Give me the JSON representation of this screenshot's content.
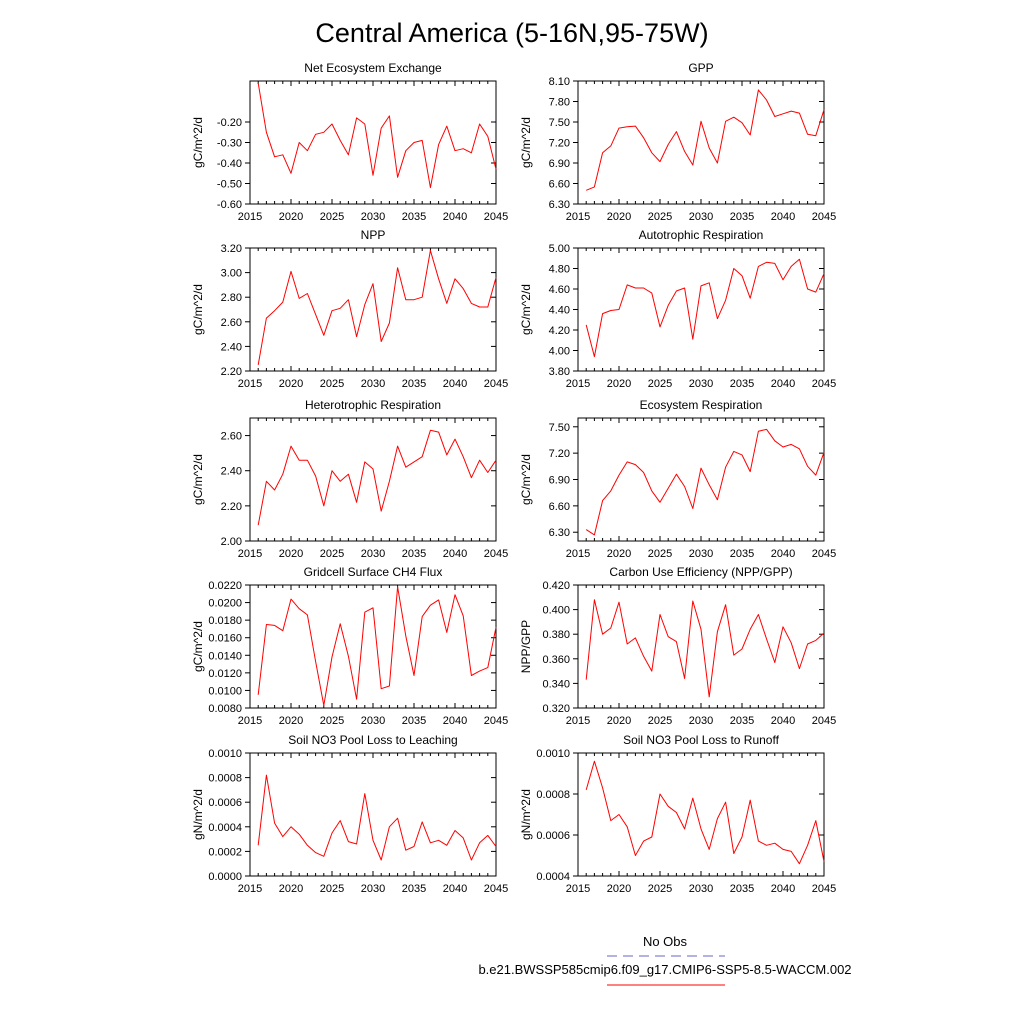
{
  "figure": {
    "title": "Central America (5-16N,95-75W)",
    "legend": {
      "obs_label": "No Obs",
      "obs_color": "#6666cc",
      "model_label": "b.e21.BWSSP585cmip6.f09_g17.CMIP6-SSP5-8.5-WACCM.002",
      "model_color": "#ff0000"
    }
  },
  "chart_data": [
    {
      "type": "line",
      "title": "Net Ecosystem Exchange",
      "xlabel": "",
      "ylabel": "gC/m^2/d",
      "xlim": [
        2015,
        2045
      ],
      "xticks": [
        "2015",
        "2020",
        "2025",
        "2030",
        "2035",
        "2040",
        "2045"
      ],
      "ylim": [
        -0.6,
        0.0
      ],
      "yticks": [
        "-0.60",
        "-0.50",
        "-0.40",
        "-0.30",
        "-0.20"
      ],
      "x": [
        2016,
        2017,
        2018,
        2019,
        2020,
        2021,
        2022,
        2023,
        2024,
        2025,
        2026,
        2027,
        2028,
        2029,
        2030,
        2031,
        2032,
        2033,
        2034,
        2035,
        2036,
        2037,
        2038,
        2039,
        2040,
        2041,
        2042,
        2043,
        2044,
        2045
      ],
      "series": [
        {
          "name": "b.e21.BWSSP585cmip6.f09_g17.CMIP6-SSP5-8.5-WACCM.002",
          "color": "#ff0000",
          "values": [
            -0.01,
            -0.25,
            -0.37,
            -0.36,
            -0.45,
            -0.3,
            -0.34,
            -0.26,
            -0.25,
            -0.21,
            -0.29,
            -0.36,
            -0.18,
            -0.21,
            -0.46,
            -0.23,
            -0.17,
            -0.47,
            -0.34,
            -0.3,
            -0.29,
            -0.52,
            -0.31,
            -0.22,
            -0.34,
            -0.33,
            -0.35,
            -0.21,
            -0.27,
            -0.43
          ]
        }
      ]
    },
    {
      "type": "line",
      "title": "GPP",
      "xlabel": "",
      "ylabel": "gC/m^2/d",
      "xlim": [
        2015,
        2045
      ],
      "xticks": [
        "2015",
        "2020",
        "2025",
        "2030",
        "2035",
        "2040",
        "2045"
      ],
      "ylim": [
        6.3,
        8.1
      ],
      "yticks": [
        "6.30",
        "6.60",
        "6.90",
        "7.20",
        "7.50",
        "7.80",
        "8.10"
      ],
      "x": [
        2016,
        2017,
        2018,
        2019,
        2020,
        2021,
        2022,
        2023,
        2024,
        2025,
        2026,
        2027,
        2028,
        2029,
        2030,
        2031,
        2032,
        2033,
        2034,
        2035,
        2036,
        2037,
        2038,
        2039,
        2040,
        2041,
        2042,
        2043,
        2044,
        2045
      ],
      "series": [
        {
          "name": "b.e21.BWSSP585cmip6.f09_g17.CMIP6-SSP5-8.5-WACCM.002",
          "color": "#ff0000",
          "values": [
            6.5,
            6.55,
            7.05,
            7.15,
            7.41,
            7.43,
            7.44,
            7.27,
            7.05,
            6.92,
            7.17,
            7.36,
            7.07,
            6.87,
            7.51,
            7.12,
            6.9,
            7.51,
            7.57,
            7.49,
            7.31,
            7.97,
            7.82,
            7.58,
            7.62,
            7.66,
            7.63,
            7.32,
            7.3,
            7.68
          ]
        }
      ]
    },
    {
      "type": "line",
      "title": "NPP",
      "xlabel": "",
      "ylabel": "gC/m^2/d",
      "xlim": [
        2015,
        2045
      ],
      "xticks": [
        "2015",
        "2020",
        "2025",
        "2030",
        "2035",
        "2040",
        "2045"
      ],
      "ylim": [
        2.2,
        3.2
      ],
      "yticks": [
        "2.20",
        "2.40",
        "2.60",
        "2.80",
        "3.00",
        "3.20"
      ],
      "x": [
        2016,
        2017,
        2018,
        2019,
        2020,
        2021,
        2022,
        2023,
        2024,
        2025,
        2026,
        2027,
        2028,
        2029,
        2030,
        2031,
        2032,
        2033,
        2034,
        2035,
        2036,
        2037,
        2038,
        2039,
        2040,
        2041,
        2042,
        2043,
        2044,
        2045
      ],
      "series": [
        {
          "name": "b.e21.BWSSP585cmip6.f09_g17.CMIP6-SSP5-8.5-WACCM.002",
          "color": "#ff0000",
          "values": [
            2.25,
            2.63,
            2.69,
            2.76,
            3.01,
            2.79,
            2.83,
            2.66,
            2.49,
            2.69,
            2.71,
            2.78,
            2.48,
            2.74,
            2.91,
            2.44,
            2.59,
            3.04,
            2.78,
            2.78,
            2.8,
            3.18,
            2.95,
            2.75,
            2.95,
            2.87,
            2.75,
            2.72,
            2.72,
            2.96
          ]
        }
      ]
    },
    {
      "type": "line",
      "title": "Autotrophic Respiration",
      "xlabel": "",
      "ylabel": "gC/m^2/d",
      "xlim": [
        2015,
        2045
      ],
      "xticks": [
        "2015",
        "2020",
        "2025",
        "2030",
        "2035",
        "2040",
        "2045"
      ],
      "ylim": [
        3.8,
        5.0
      ],
      "yticks": [
        "3.80",
        "4.00",
        "4.20",
        "4.40",
        "4.60",
        "4.80",
        "5.00"
      ],
      "x": [
        2016,
        2017,
        2018,
        2019,
        2020,
        2021,
        2022,
        2023,
        2024,
        2025,
        2026,
        2027,
        2028,
        2029,
        2030,
        2031,
        2032,
        2033,
        2034,
        2035,
        2036,
        2037,
        2038,
        2039,
        2040,
        2041,
        2042,
        2043,
        2044,
        2045
      ],
      "series": [
        {
          "name": "b.e21.BWSSP585cmip6.f09_g17.CMIP6-SSP5-8.5-WACCM.002",
          "color": "#ff0000",
          "values": [
            4.25,
            3.94,
            4.36,
            4.39,
            4.4,
            4.64,
            4.61,
            4.61,
            4.56,
            4.23,
            4.44,
            4.58,
            4.61,
            4.11,
            4.63,
            4.66,
            4.31,
            4.49,
            4.8,
            4.73,
            4.51,
            4.82,
            4.86,
            4.85,
            4.69,
            4.82,
            4.89,
            4.6,
            4.57,
            4.75
          ]
        }
      ]
    },
    {
      "type": "line",
      "title": "Heterotrophic Respiration",
      "xlabel": "",
      "ylabel": "gC/m^2/d",
      "xlim": [
        2015,
        2045
      ],
      "xticks": [
        "2015",
        "2020",
        "2025",
        "2030",
        "2035",
        "2040",
        "2045"
      ],
      "ylim": [
        2.0,
        2.7
      ],
      "yticks": [
        "2.00",
        "2.20",
        "2.40",
        "2.60"
      ],
      "x": [
        2016,
        2017,
        2018,
        2019,
        2020,
        2021,
        2022,
        2023,
        2024,
        2025,
        2026,
        2027,
        2028,
        2029,
        2030,
        2031,
        2032,
        2033,
        2034,
        2035,
        2036,
        2037,
        2038,
        2039,
        2040,
        2041,
        2042,
        2043,
        2044,
        2045
      ],
      "series": [
        {
          "name": "b.e21.BWSSP585cmip6.f09_g17.CMIP6-SSP5-8.5-WACCM.002",
          "color": "#ff0000",
          "values": [
            2.09,
            2.34,
            2.29,
            2.38,
            2.54,
            2.46,
            2.46,
            2.37,
            2.2,
            2.4,
            2.34,
            2.38,
            2.22,
            2.45,
            2.41,
            2.17,
            2.34,
            2.54,
            2.42,
            2.45,
            2.48,
            2.63,
            2.62,
            2.49,
            2.58,
            2.48,
            2.36,
            2.46,
            2.39,
            2.46
          ]
        }
      ]
    },
    {
      "type": "line",
      "title": "Ecosystem Respiration",
      "xlabel": "",
      "ylabel": "gC/m^2/d",
      "xlim": [
        2015,
        2045
      ],
      "xticks": [
        "2015",
        "2020",
        "2025",
        "2030",
        "2035",
        "2040",
        "2045"
      ],
      "ylim": [
        6.2,
        7.6
      ],
      "yticks": [
        "6.30",
        "6.60",
        "6.90",
        "7.20",
        "7.50"
      ],
      "x": [
        2016,
        2017,
        2018,
        2019,
        2020,
        2021,
        2022,
        2023,
        2024,
        2025,
        2026,
        2027,
        2028,
        2029,
        2030,
        2031,
        2032,
        2033,
        2034,
        2035,
        2036,
        2037,
        2038,
        2039,
        2040,
        2041,
        2042,
        2043,
        2044,
        2045
      ],
      "series": [
        {
          "name": "b.e21.BWSSP585cmip6.f09_g17.CMIP6-SSP5-8.5-WACCM.002",
          "color": "#ff0000",
          "values": [
            6.33,
            6.27,
            6.66,
            6.77,
            6.95,
            7.1,
            7.07,
            6.98,
            6.77,
            6.64,
            6.8,
            6.96,
            6.82,
            6.57,
            7.03,
            6.84,
            6.67,
            7.04,
            7.22,
            7.18,
            6.99,
            7.45,
            7.47,
            7.34,
            7.27,
            7.3,
            7.25,
            7.05,
            6.95,
            7.21
          ]
        }
      ]
    },
    {
      "type": "line",
      "title": "Gridcell Surface CH4 Flux",
      "xlabel": "",
      "ylabel": "gC/m^2/d",
      "xlim": [
        2015,
        2045
      ],
      "xticks": [
        "2015",
        "2020",
        "2025",
        "2030",
        "2035",
        "2040",
        "2045"
      ],
      "ylim": [
        0.008,
        0.022
      ],
      "yticks": [
        "0.0080",
        "0.0100",
        "0.0120",
        "0.0140",
        "0.0160",
        "0.0180",
        "0.0200",
        "0.0220"
      ],
      "x": [
        2016,
        2017,
        2018,
        2019,
        2020,
        2021,
        2022,
        2023,
        2024,
        2025,
        2026,
        2027,
        2028,
        2029,
        2030,
        2031,
        2032,
        2033,
        2034,
        2035,
        2036,
        2037,
        2038,
        2039,
        2040,
        2041,
        2042,
        2043,
        2044,
        2045
      ],
      "series": [
        {
          "name": "b.e21.BWSSP585cmip6.f09_g17.CMIP6-SSP5-8.5-WACCM.002",
          "color": "#ff0000",
          "values": [
            0.0095,
            0.0175,
            0.0174,
            0.0168,
            0.0204,
            0.0193,
            0.0186,
            0.0133,
            0.0083,
            0.0138,
            0.0176,
            0.0139,
            0.009,
            0.0189,
            0.0194,
            0.0102,
            0.0105,
            0.0218,
            0.0162,
            0.0117,
            0.0184,
            0.0197,
            0.0203,
            0.0166,
            0.0209,
            0.0185,
            0.0117,
            0.0122,
            0.0126,
            0.0172
          ]
        }
      ]
    },
    {
      "type": "line",
      "title": "Carbon Use Efficiency (NPP/GPP)",
      "xlabel": "",
      "ylabel": "NPP/GPP",
      "xlim": [
        2015,
        2045
      ],
      "xticks": [
        "2015",
        "2020",
        "2025",
        "2030",
        "2035",
        "2040",
        "2045"
      ],
      "ylim": [
        0.32,
        0.42
      ],
      "yticks": [
        "0.320",
        "0.340",
        "0.360",
        "0.380",
        "0.400",
        "0.420"
      ],
      "x": [
        2016,
        2017,
        2018,
        2019,
        2020,
        2021,
        2022,
        2023,
        2024,
        2025,
        2026,
        2027,
        2028,
        2029,
        2030,
        2031,
        2032,
        2033,
        2034,
        2035,
        2036,
        2037,
        2038,
        2039,
        2040,
        2041,
        2042,
        2043,
        2044,
        2045
      ],
      "series": [
        {
          "name": "b.e21.BWSSP585cmip6.f09_g17.CMIP6-SSP5-8.5-WACCM.002",
          "color": "#ff0000",
          "values": [
            0.343,
            0.408,
            0.38,
            0.385,
            0.406,
            0.372,
            0.377,
            0.362,
            0.35,
            0.396,
            0.378,
            0.374,
            0.344,
            0.407,
            0.384,
            0.329,
            0.382,
            0.404,
            0.363,
            0.368,
            0.384,
            0.396,
            0.376,
            0.357,
            0.386,
            0.373,
            0.352,
            0.372,
            0.375,
            0.381
          ]
        }
      ]
    },
    {
      "type": "line",
      "title": "Soil NO3 Pool Loss to Leaching",
      "xlabel": "",
      "ylabel": "gN/m^2/d",
      "xlim": [
        2015,
        2045
      ],
      "xticks": [
        "2015",
        "2020",
        "2025",
        "2030",
        "2035",
        "2040",
        "2045"
      ],
      "ylim": [
        0.0,
        0.001
      ],
      "yticks": [
        "0.0000",
        "0.0002",
        "0.0004",
        "0.0006",
        "0.0008",
        "0.0010"
      ],
      "x": [
        2016,
        2017,
        2018,
        2019,
        2020,
        2021,
        2022,
        2023,
        2024,
        2025,
        2026,
        2027,
        2028,
        2029,
        2030,
        2031,
        2032,
        2033,
        2034,
        2035,
        2036,
        2037,
        2038,
        2039,
        2040,
        2041,
        2042,
        2043,
        2044,
        2045
      ],
      "series": [
        {
          "name": "b.e21.BWSSP585cmip6.f09_g17.CMIP6-SSP5-8.5-WACCM.002",
          "color": "#ff0000",
          "values": [
            0.00025,
            0.00082,
            0.00043,
            0.00032,
            0.0004,
            0.00034,
            0.00025,
            0.00019,
            0.00016,
            0.00035,
            0.00045,
            0.00028,
            0.00026,
            0.00067,
            0.00029,
            0.00013,
            0.0004,
            0.00047,
            0.00021,
            0.00024,
            0.00044,
            0.00027,
            0.00029,
            0.00025,
            0.00037,
            0.00031,
            0.00013,
            0.00027,
            0.00033,
            0.00024
          ]
        }
      ]
    },
    {
      "type": "line",
      "title": "Soil NO3 Pool Loss to Runoff",
      "xlabel": "",
      "ylabel": "gN/m^2/d",
      "xlim": [
        2015,
        2045
      ],
      "xticks": [
        "2015",
        "2020",
        "2025",
        "2030",
        "2035",
        "2040",
        "2045"
      ],
      "ylim": [
        0.0004,
        0.001
      ],
      "yticks": [
        "0.0004",
        "0.0006",
        "0.0008",
        "0.0010"
      ],
      "x": [
        2016,
        2017,
        2018,
        2019,
        2020,
        2021,
        2022,
        2023,
        2024,
        2025,
        2026,
        2027,
        2028,
        2029,
        2030,
        2031,
        2032,
        2033,
        2034,
        2035,
        2036,
        2037,
        2038,
        2039,
        2040,
        2041,
        2042,
        2043,
        2044,
        2045
      ],
      "series": [
        {
          "name": "b.e21.BWSSP585cmip6.f09_g17.CMIP6-SSP5-8.5-WACCM.002",
          "color": "#ff0000",
          "values": [
            0.00082,
            0.00096,
            0.00083,
            0.00067,
            0.0007,
            0.00064,
            0.0005,
            0.00057,
            0.00059,
            0.0008,
            0.00074,
            0.00071,
            0.00063,
            0.00078,
            0.00063,
            0.00053,
            0.00068,
            0.00076,
            0.00051,
            0.00059,
            0.00077,
            0.00057,
            0.00055,
            0.00056,
            0.00053,
            0.00052,
            0.00046,
            0.00055,
            0.00067,
            0.00047
          ]
        }
      ]
    }
  ]
}
